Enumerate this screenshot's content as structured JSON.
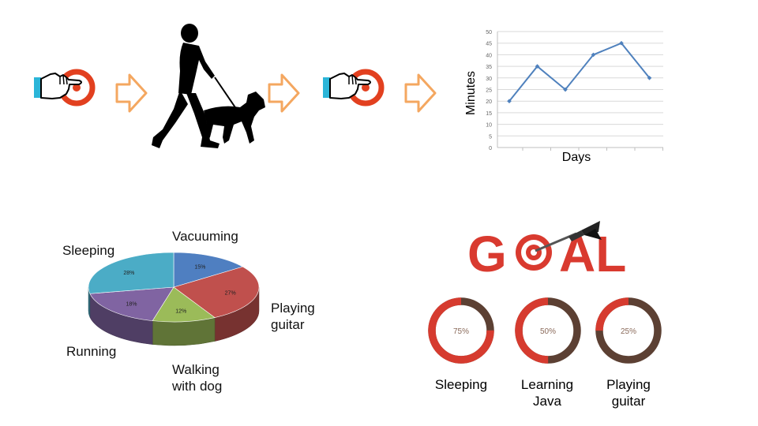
{
  "chart_data": [
    {
      "type": "line",
      "xlabel": "Days",
      "ylabel": "Minutes",
      "ylim": [
        0,
        50
      ],
      "y_ticks": [
        "0",
        "5",
        "10",
        "15",
        "20",
        "25",
        "30",
        "35",
        "40",
        "45",
        "50"
      ],
      "x": [
        1,
        2,
        3,
        4,
        5,
        6
      ],
      "series": [
        {
          "values": [
            20,
            35,
            25,
            40,
            45,
            30
          ],
          "color": "#4f81bd"
        }
      ],
      "grid": true
    },
    {
      "type": "pie",
      "slices": [
        {
          "label": "Vacuuming",
          "value": 15,
          "value_label": "15%",
          "color": "#4f7fc1"
        },
        {
          "label": "Playing guitar",
          "value": 27,
          "value_label": "27%",
          "color": "#c0504d"
        },
        {
          "label": "Walking with dog",
          "value": 12,
          "value_label": "12%",
          "color": "#9bbb59"
        },
        {
          "label": "Running",
          "value": 18,
          "value_label": "18%",
          "color": "#8064a2"
        },
        {
          "label": "Sleeping",
          "value": 28,
          "value_label": "28%",
          "color": "#4bacc6"
        }
      ]
    },
    {
      "type": "donut",
      "items": [
        {
          "name": "sleeping",
          "line1": "Sleeping",
          "line2": "",
          "value": 75,
          "value_label": "75%"
        },
        {
          "name": "learning-java",
          "line1": "Learning",
          "line2": "Java",
          "value": 50,
          "value_label": "50%"
        },
        {
          "name": "playing-guitar",
          "line1": "Playing",
          "line2": "guitar",
          "value": 25,
          "value_label": "25%"
        }
      ],
      "done_color": "#d63b2f",
      "remaining_color": "#5c4033"
    }
  ],
  "pie_labels": {
    "vacuuming": "Vacuuming",
    "sleeping": "Sleeping",
    "playing_1": "Playing",
    "playing_2": "guitar",
    "running": "Running",
    "walking_1": "Walking",
    "walking_2": "with dog"
  },
  "goal_logo": {
    "text": "GOAL",
    "color": "#d93a2f"
  },
  "icons": [
    "touch-tap-icon",
    "arrow-right-icon",
    "walking-with-dog-icon",
    "arrow-right-icon",
    "touch-tap-icon",
    "arrow-right-icon",
    "dart-target-icon"
  ],
  "colors": {
    "arrow": "#f4a760",
    "cuff": "#2bb5d8",
    "target": "#e2401f"
  }
}
